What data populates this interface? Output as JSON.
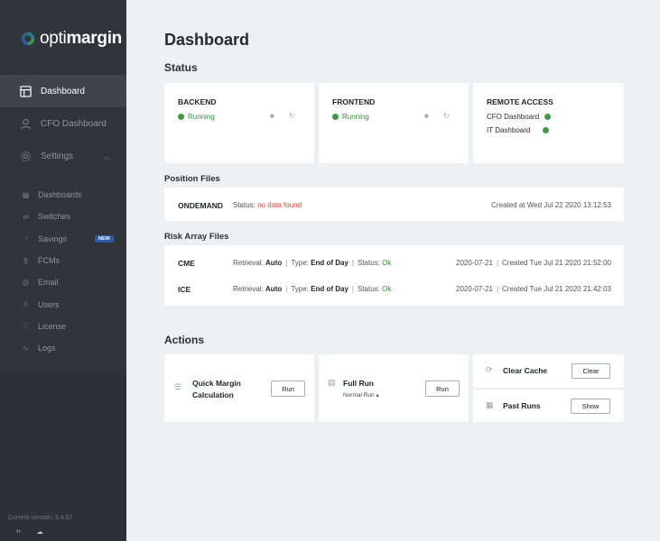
{
  "app": {
    "logo_light": "opti",
    "logo_bold": "margin",
    "brand_colors": {
      "green": "#3f9a44",
      "teal": "#2a7d8c",
      "blue": "#2f5aa8"
    }
  },
  "sidebar": {
    "main_items": [
      {
        "label": "Dashboard",
        "icon": "layout-icon",
        "active": true
      },
      {
        "label": "CFO Dashboard",
        "icon": "user-icon",
        "active": false
      },
      {
        "label": "Settings",
        "icon": "gear-icon",
        "active": false,
        "expanded": true
      }
    ],
    "sub_items": [
      {
        "label": "Dashboards",
        "icon": "grid-icon"
      },
      {
        "label": "Switches",
        "icon": "switch-icon"
      },
      {
        "label": "Savings",
        "icon": "piggy-icon",
        "badge": "NEW"
      },
      {
        "label": "FCMs",
        "icon": "dollar-icon"
      },
      {
        "label": "Email",
        "icon": "at-icon"
      },
      {
        "label": "Users",
        "icon": "users-icon"
      },
      {
        "label": "License",
        "icon": "info-icon"
      },
      {
        "label": "Logs",
        "icon": "activity-icon"
      }
    ],
    "version": "Current version: 3.4.57",
    "footer_left_icon": "‹›",
    "footer_right_icon": "☁"
  },
  "page": {
    "title": "Dashboard",
    "status_section": "Status",
    "position_files_section": "Position Files",
    "risk_array_section": "Risk Array Files",
    "actions_section": "Actions"
  },
  "status_cards": {
    "backend": {
      "title": "BACKEND",
      "state": "Running"
    },
    "frontend": {
      "title": "FRONTEND",
      "state": "Running"
    },
    "remote": {
      "title": "REMOTE ACCESS",
      "items": [
        "CFO Dashboard",
        "IT Dashboard"
      ]
    }
  },
  "position_file": {
    "name": "ONDEMAND",
    "status_label": "Status:",
    "status_value": "no data found",
    "created": "Created at Wed Jul 22 2020 13:12:53"
  },
  "risk_arrays": [
    {
      "name": "CME",
      "retrieval_label": "Retrieval:",
      "retrieval": "Auto",
      "type_label": "Type:",
      "type": "End of Day",
      "status_label": "Status:",
      "status": "Ok",
      "date": "2020-07-21",
      "created": "Created Tue Jul 21 2020 21:52:00"
    },
    {
      "name": "ICE",
      "retrieval_label": "Retrieval:",
      "retrieval": "Auto",
      "type_label": "Type:",
      "type": "End of Day",
      "status_label": "Status:",
      "status": "Ok",
      "date": "2020-07-21",
      "created": "Created Tue Jul 21 2020 21:42:03"
    }
  ],
  "actions": {
    "quick_margin": {
      "label_line1": "Quick Margin",
      "label_line2": "Calculation",
      "button": "Run"
    },
    "full_run": {
      "label": "Full Run",
      "mode": "Normal Run",
      "button": "Run"
    },
    "clear_cache": {
      "label": "Clear Cache",
      "button": "Clear"
    },
    "past_runs": {
      "label": "Past Runs",
      "button": "Show"
    }
  }
}
